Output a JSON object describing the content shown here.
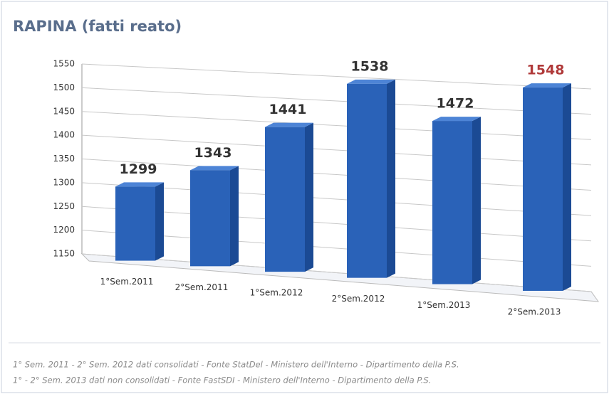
{
  "chart_data": {
    "type": "bar3d",
    "title": "RAPINA (fatti reato)",
    "categories": [
      "1°Sem.2011",
      "2°Sem.2011",
      "1°Sem.2012",
      "2°Sem.2012",
      "1°Sem.2013",
      "2°Sem.2013"
    ],
    "values": [
      1299,
      1343,
      1441,
      1538,
      1472,
      1548
    ],
    "color": "#2a62b8",
    "value_label_colors": [
      "#333333",
      "#333333",
      "#333333",
      "#333333",
      "#333333",
      "#b03a3a"
    ],
    "ylim": [
      1150,
      1550
    ],
    "yticks": [
      1150,
      1200,
      1250,
      1300,
      1350,
      1400,
      1450,
      1500,
      1550
    ],
    "grid": true
  },
  "notes": [
    "1° Sem. 2011 - 2° Sem. 2012 dati consolidati - Fonte StatDel - Ministero dell'Interno - Dipartimento della P.S.",
    "1° - 2° Sem. 2013 dati non consolidati - Fonte FastSDI - Ministero dell'Interno - Dipartimento della P.S."
  ]
}
